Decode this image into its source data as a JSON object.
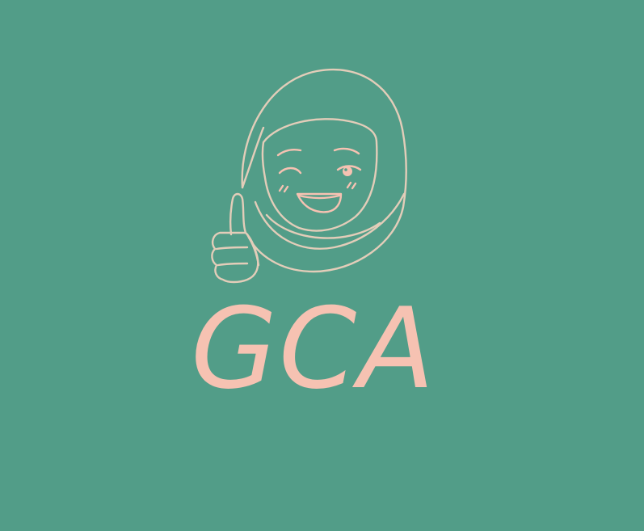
{
  "logo": {
    "text": "GCA",
    "icon": "hijab-girl-thumbs-up-icon"
  },
  "colors": {
    "background": "#529d88",
    "accent_pink": "#f6c2b2",
    "outline_beige": "#e3cdb9"
  }
}
